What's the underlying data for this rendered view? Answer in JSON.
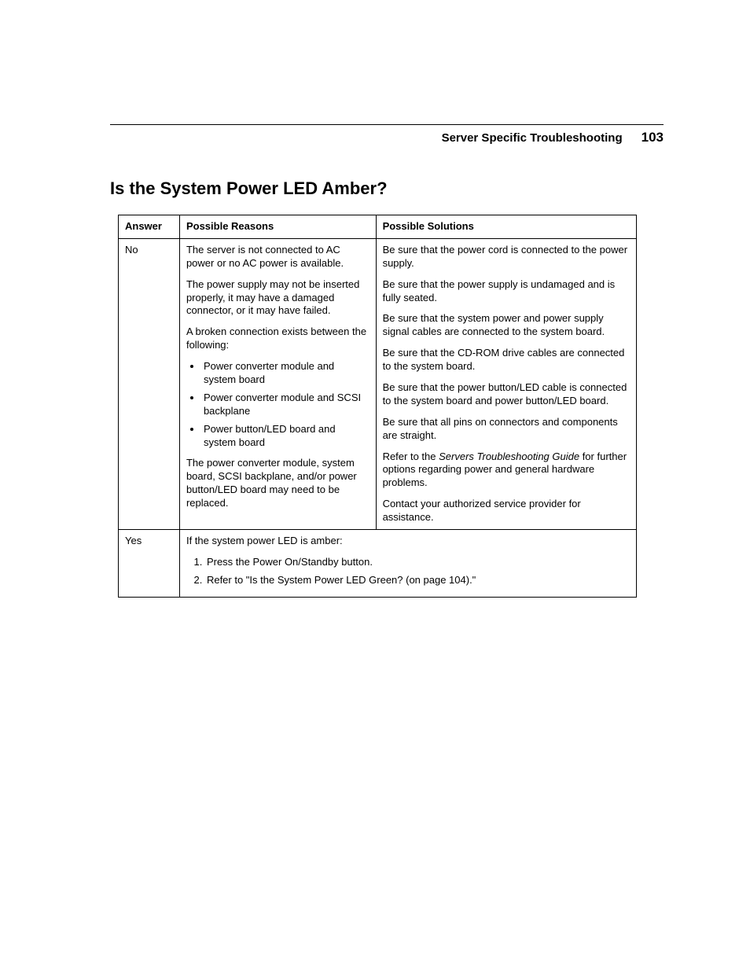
{
  "header": {
    "title": "Server Specific Troubleshooting",
    "page_number": "103"
  },
  "section": {
    "heading": "Is the System Power LED Amber?"
  },
  "table": {
    "columns": {
      "answer": "Answer",
      "reasons": "Possible Reasons",
      "solutions": "Possible Solutions"
    },
    "no": {
      "answer": "No",
      "reasons": {
        "p1": "The server is not connected to AC power or no AC power is available.",
        "p2": "The power supply may not be inserted properly, it may have a damaged connector, or it may have failed.",
        "p3": "A broken connection exists between the following:",
        "bullets": {
          "b1": "Power converter module and system board",
          "b2": "Power converter module and SCSI backplane",
          "b3": "Power button/LED board and system board"
        },
        "p4": "The power converter module, system board, SCSI backplane, and/or power button/LED board may need to be replaced."
      },
      "solutions": {
        "s1": "Be sure that the power cord is connected to the power supply.",
        "s2": "Be sure that the power supply is undamaged and is fully seated.",
        "s3": "Be sure that the system power and power supply signal cables are connected to the system board.",
        "s4": "Be sure that the CD-ROM drive cables are connected to the system board.",
        "s5": "Be sure that the power button/LED cable is connected to the system board and power button/LED board.",
        "s6": "Be sure that all pins on connectors and components are straight.",
        "s7_pre": "Refer to the ",
        "s7_em": "Servers Troubleshooting Guide",
        "s7_post": " for further options regarding power and general hardware problems.",
        "s8": "Contact your authorized service provider for assistance."
      }
    },
    "yes": {
      "answer": "Yes",
      "intro": "If the system power LED is amber:",
      "steps": {
        "st1": "Press the Power On/Standby button.",
        "st2": "Refer to \"Is the System Power LED Green? (on page 104).\""
      }
    }
  }
}
